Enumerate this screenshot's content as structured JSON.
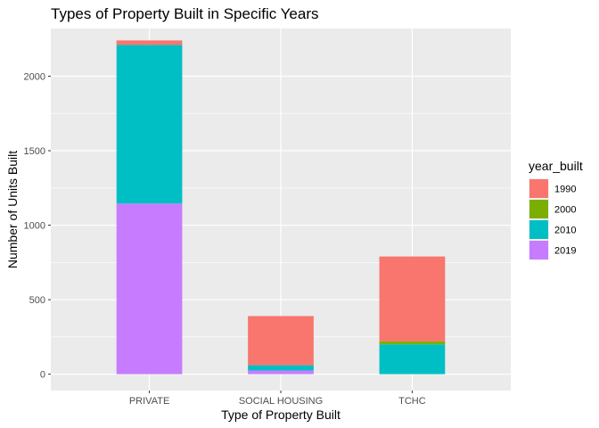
{
  "chart_data": {
    "type": "bar",
    "stacked": true,
    "title": "Types of Property Built in Specific Years",
    "xlabel": "Type of Property Built",
    "ylabel": "Number of Units Built",
    "categories": [
      "PRIVATE",
      "SOCIAL HOUSING",
      "TCHC"
    ],
    "ylim": [
      -110,
      2320
    ],
    "yticks": [
      0,
      500,
      1000,
      1500,
      2000
    ],
    "ytick_labels": [
      "0",
      "500",
      "1000",
      "1500",
      "2000"
    ],
    "grid": true,
    "legend": {
      "title": "year_built",
      "position": "right"
    },
    "series": [
      {
        "name": "2019",
        "color": "#C77CFF",
        "values": [
          1145,
          25,
          0
        ]
      },
      {
        "name": "2010",
        "color": "#00BFC4",
        "values": [
          1065,
          35,
          200
        ]
      },
      {
        "name": "2000",
        "color": "#7CAE00",
        "values": [
          0,
          0,
          20
        ]
      },
      {
        "name": "1990",
        "color": "#F8766D",
        "values": [
          30,
          330,
          570
        ]
      }
    ],
    "legend_order": [
      "1990",
      "2000",
      "2010",
      "2019"
    ]
  }
}
